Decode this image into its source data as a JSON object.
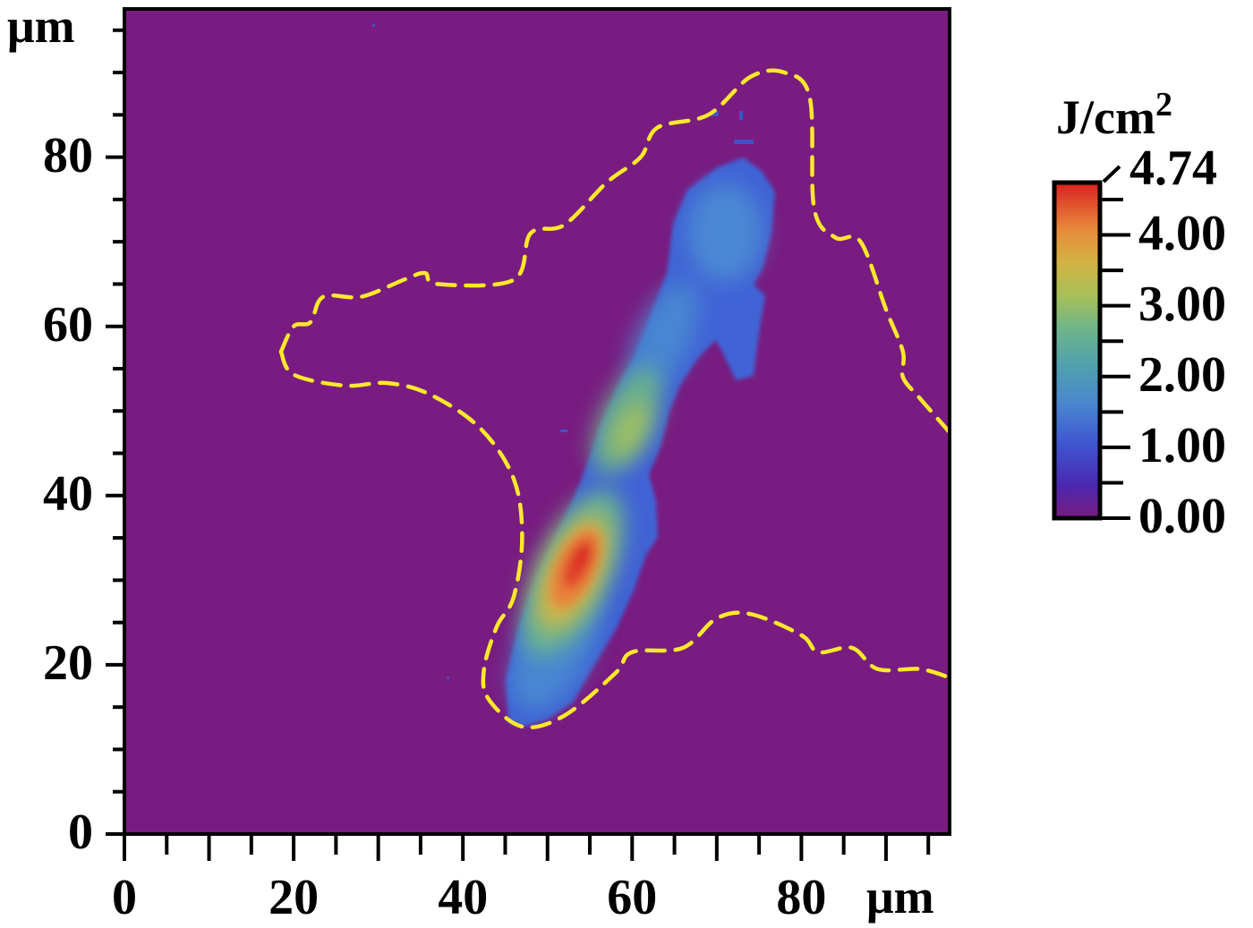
{
  "chart_data": {
    "type": "heatmap",
    "title": "",
    "xlabel": "μm",
    "ylabel": "μm",
    "xlim": [
      0,
      97.5
    ],
    "ylim": [
      0,
      97.8
    ],
    "x_ticks_major": [
      0,
      20,
      40,
      60,
      80
    ],
    "y_ticks_major": [
      0,
      20,
      40,
      60,
      80
    ],
    "minor_tick_step": 5,
    "grid": false,
    "background_value": 0.0,
    "colorbar": {
      "label": "J/cm",
      "label_superscript": "2",
      "min": 0.0,
      "max": 4.74,
      "max_label": "4.74",
      "ticks": [
        "0.00",
        "1.00",
        "2.00",
        "3.00",
        "4.00"
      ],
      "tick_values": [
        0,
        1,
        2,
        3,
        4
      ],
      "minor_tick_values": [
        0.5,
        1.5,
        2.5,
        3.5,
        4.5
      ],
      "colormap": [
        "#781c81",
        "#3f3fc8",
        "#4a80d0",
        "#4fa0b8",
        "#6cb48a",
        "#a8c05a",
        "#d8b040",
        "#ea7a32",
        "#d92120"
      ]
    },
    "feature": {
      "description": "elongated diagonal fluence streak from ~(47,13) to ~(76,80) μm",
      "peak_value": 4.74,
      "peak_location_um": [
        54,
        32
      ],
      "secondary_maximum_um": [
        60,
        48
      ],
      "upper_lobe_center_um": [
        70,
        70
      ],
      "upper_lobe_value_approx": 1.0
    },
    "contour": {
      "style": "dashed",
      "color": "#ffe82a",
      "points_um": [
        [
          18.5,
          57
        ],
        [
          20,
          60
        ],
        [
          22,
          60.5
        ],
        [
          23.5,
          63.5
        ],
        [
          28,
          63.5
        ],
        [
          33,
          65.5
        ],
        [
          35.5,
          66.3
        ],
        [
          37,
          65
        ],
        [
          46,
          65.5
        ],
        [
          48,
          71
        ],
        [
          52,
          72
        ],
        [
          57,
          77
        ],
        [
          61,
          80
        ],
        [
          63,
          83.5
        ],
        [
          69,
          85
        ],
        [
          74,
          89.5
        ],
        [
          78,
          90
        ],
        [
          81,
          87
        ],
        [
          81.5,
          74
        ],
        [
          84,
          70.5
        ],
        [
          87,
          70
        ],
        [
          90,
          62
        ],
        [
          92,
          57
        ],
        [
          92,
          54
        ],
        [
          94,
          51.5
        ],
        [
          97.5,
          47.5
        ]
      ],
      "points_um_lower": [
        [
          18.5,
          57
        ],
        [
          20,
          54.3
        ],
        [
          26,
          53
        ],
        [
          31,
          53.3
        ],
        [
          36,
          52
        ],
        [
          42,
          48
        ],
        [
          46,
          42
        ],
        [
          47,
          35
        ],
        [
          46,
          28
        ],
        [
          44,
          24.5
        ],
        [
          42.5,
          19.5
        ],
        [
          43,
          16
        ],
        [
          47,
          12.7
        ],
        [
          52,
          14
        ],
        [
          58,
          19
        ],
        [
          60,
          21.5
        ],
        [
          66,
          22
        ],
        [
          70,
          25.5
        ],
        [
          74,
          26
        ],
        [
          80,
          23.5
        ],
        [
          82,
          21.5
        ],
        [
          86,
          22
        ],
        [
          89,
          19.5
        ],
        [
          94,
          19.5
        ],
        [
          97.5,
          18.5
        ]
      ]
    }
  },
  "axes": {
    "y_unit": "μm",
    "x_unit": "μm",
    "y_labels": [
      "0",
      "20",
      "40",
      "60",
      "80"
    ],
    "x_labels": [
      "0",
      "20",
      "40",
      "60",
      "80"
    ]
  },
  "colors": {
    "background": "#781c81",
    "contour": "#ffe82a",
    "axis": "#000000"
  }
}
